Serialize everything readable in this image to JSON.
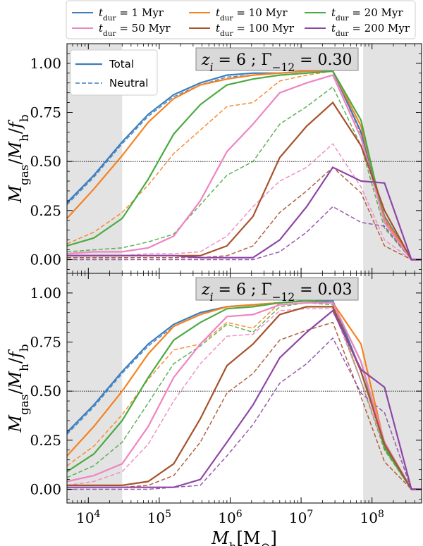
{
  "chart_data": {
    "type": "line",
    "xscale": "log",
    "xlim": [
      5000,
      500000000
    ],
    "ylim": [
      -0.07,
      1.1
    ],
    "xlabel": "M_h [M_⊙]",
    "ylabel": "M_gas / M_h / f_b",
    "x_tick_labels": [
      "10^4",
      "10^5",
      "10^6",
      "10^7",
      "10^8"
    ],
    "y_tick_labels": [
      "0.00",
      "0.25",
      "0.50",
      "0.75",
      "1.00"
    ],
    "reference_line": 0.5,
    "shaded_regions": [
      [
        5000,
        30000
      ],
      [
        75000000,
        500000000
      ]
    ],
    "x": [
      5000,
      12000,
      30000,
      70000,
      160000,
      380000,
      900000,
      2100000,
      5000000,
      12000000,
      28000000,
      70000000,
      150000000,
      360000000,
      500000000
    ],
    "legend": {
      "placement": "top, above plots",
      "entries": [
        {
          "label": "t_dur = 1 Myr",
          "color": "#3b7dbf"
        },
        {
          "label": "t_dur = 10 Myr",
          "color": "#f5821f"
        },
        {
          "label": "t_dur = 20 Myr",
          "color": "#4aaa42"
        },
        {
          "label": "t_dur = 50 Myr",
          "color": "#ef84c2"
        },
        {
          "label": "t_dur = 100 Myr",
          "color": "#a6522b"
        },
        {
          "label": "t_dur = 200 Myr",
          "color": "#8e46a6"
        }
      ]
    },
    "line_style_legend": {
      "placement": "top-left of upper panel",
      "entries": [
        {
          "label": "Total",
          "style": "solid"
        },
        {
          "label": "Neutral",
          "style": "dashed"
        }
      ]
    },
    "panels": [
      {
        "title": "z_i = 6 ; Γ_−12 = 0.30",
        "series": [
          {
            "color": "#3b7dbf",
            "total": [
              0.29,
              0.43,
              0.6,
              0.74,
              0.84,
              0.9,
              0.94,
              0.95,
              0.95,
              0.96,
              0.96,
              0.65,
              0.22,
              0.0,
              0.0
            ],
            "neutral": [
              0.28,
              0.42,
              0.59,
              0.73,
              0.83,
              0.89,
              0.93,
              0.94,
              0.95,
              0.96,
              0.96,
              0.64,
              0.2,
              0.0,
              0.0
            ]
          },
          {
            "color": "#f5821f",
            "total": [
              0.21,
              0.36,
              0.53,
              0.7,
              0.82,
              0.89,
              0.92,
              0.94,
              0.95,
              0.96,
              0.96,
              0.68,
              0.21,
              0.0,
              0.0
            ],
            "neutral": [
              0.08,
              0.14,
              0.24,
              0.38,
              0.54,
              0.66,
              0.78,
              0.8,
              0.91,
              0.94,
              0.96,
              0.64,
              0.22,
              0.0,
              0.0
            ]
          },
          {
            "color": "#4aaa42",
            "total": [
              0.07,
              0.11,
              0.21,
              0.41,
              0.64,
              0.79,
              0.89,
              0.92,
              0.94,
              0.95,
              0.96,
              0.71,
              0.19,
              0.0,
              0.0
            ],
            "neutral": [
              0.04,
              0.05,
              0.06,
              0.09,
              0.13,
              0.28,
              0.43,
              0.5,
              0.69,
              0.78,
              0.88,
              0.58,
              0.16,
              0.0,
              0.0
            ]
          },
          {
            "color": "#ef84c2",
            "total": [
              0.03,
              0.04,
              0.04,
              0.06,
              0.12,
              0.3,
              0.55,
              0.69,
              0.85,
              0.9,
              0.94,
              0.62,
              0.19,
              0.0,
              0.0
            ],
            "neutral": [
              0.02,
              0.02,
              0.02,
              0.03,
              0.03,
              0.04,
              0.12,
              0.27,
              0.4,
              0.47,
              0.59,
              0.37,
              0.1,
              0.0,
              0.0
            ]
          },
          {
            "color": "#a6522b",
            "total": [
              0.02,
              0.02,
              0.02,
              0.02,
              0.02,
              0.02,
              0.07,
              0.22,
              0.52,
              0.68,
              0.8,
              0.58,
              0.25,
              0.0,
              0.0
            ],
            "neutral": [
              0.01,
              0.01,
              0.01,
              0.01,
              0.01,
              0.01,
              0.02,
              0.07,
              0.24,
              0.35,
              0.47,
              0.34,
              0.07,
              0.0,
              0.0
            ]
          },
          {
            "color": "#8e46a6",
            "total": [
              0.02,
              0.02,
              0.02,
              0.02,
              0.02,
              0.01,
              0.01,
              0.01,
              0.1,
              0.27,
              0.47,
              0.4,
              0.39,
              0.0,
              0.0
            ],
            "neutral": [
              0.0,
              0.0,
              0.0,
              0.0,
              0.0,
              0.0,
              0.0,
              0.0,
              0.04,
              0.14,
              0.27,
              0.19,
              0.17,
              0.0,
              0.0
            ]
          }
        ]
      },
      {
        "title": "z_i = 6 ; Γ_−12 = 0.03",
        "series": [
          {
            "color": "#3b7dbf",
            "total": [
              0.29,
              0.43,
              0.6,
              0.74,
              0.84,
              0.9,
              0.93,
              0.94,
              0.95,
              0.96,
              0.96,
              0.6,
              0.24,
              0.0,
              0.0
            ],
            "neutral": [
              0.28,
              0.42,
              0.59,
              0.73,
              0.83,
              0.89,
              0.93,
              0.94,
              0.95,
              0.96,
              0.96,
              0.6,
              0.22,
              0.0,
              0.0
            ]
          },
          {
            "color": "#f5821f",
            "total": [
              0.17,
              0.32,
              0.5,
              0.69,
              0.83,
              0.89,
              0.93,
              0.94,
              0.95,
              0.96,
              0.95,
              0.74,
              0.23,
              0.0,
              0.0
            ],
            "neutral": [
              0.12,
              0.22,
              0.38,
              0.56,
              0.71,
              0.74,
              0.85,
              0.82,
              0.95,
              0.96,
              0.96,
              0.55,
              0.22,
              0.0,
              0.0
            ]
          },
          {
            "color": "#4aaa42",
            "total": [
              0.09,
              0.18,
              0.35,
              0.57,
              0.76,
              0.85,
              0.92,
              0.93,
              0.95,
              0.96,
              0.95,
              0.65,
              0.21,
              0.0,
              0.0
            ],
            "neutral": [
              0.06,
              0.12,
              0.24,
              0.44,
              0.64,
              0.73,
              0.84,
              0.8,
              0.93,
              0.95,
              0.94,
              0.55,
              0.2,
              0.0,
              0.0
            ]
          },
          {
            "color": "#ef84c2",
            "total": [
              0.04,
              0.07,
              0.13,
              0.32,
              0.57,
              0.74,
              0.88,
              0.89,
              0.94,
              0.95,
              0.95,
              0.65,
              0.24,
              0.0,
              0.0
            ],
            "neutral": [
              0.02,
              0.04,
              0.09,
              0.23,
              0.45,
              0.64,
              0.78,
              0.79,
              0.91,
              0.92,
              0.92,
              0.55,
              0.21,
              0.0,
              0.0
            ]
          },
          {
            "color": "#a6522b",
            "total": [
              0.02,
              0.02,
              0.02,
              0.04,
              0.13,
              0.36,
              0.63,
              0.74,
              0.89,
              0.93,
              0.93,
              0.6,
              0.23,
              0.0,
              0.0
            ],
            "neutral": [
              0.01,
              0.01,
              0.01,
              0.02,
              0.07,
              0.24,
              0.49,
              0.59,
              0.76,
              0.81,
              0.85,
              0.47,
              0.14,
              0.0,
              0.0
            ]
          },
          {
            "color": "#8e46a6",
            "total": [
              0.01,
              0.01,
              0.01,
              0.01,
              0.01,
              0.05,
              0.24,
              0.43,
              0.67,
              0.8,
              0.91,
              0.61,
              0.52,
              0.0,
              0.0
            ],
            "neutral": [
              0.0,
              0.0,
              0.0,
              0.0,
              0.01,
              0.02,
              0.17,
              0.33,
              0.54,
              0.64,
              0.77,
              0.49,
              0.39,
              0.0,
              0.0
            ]
          }
        ]
      }
    ]
  }
}
